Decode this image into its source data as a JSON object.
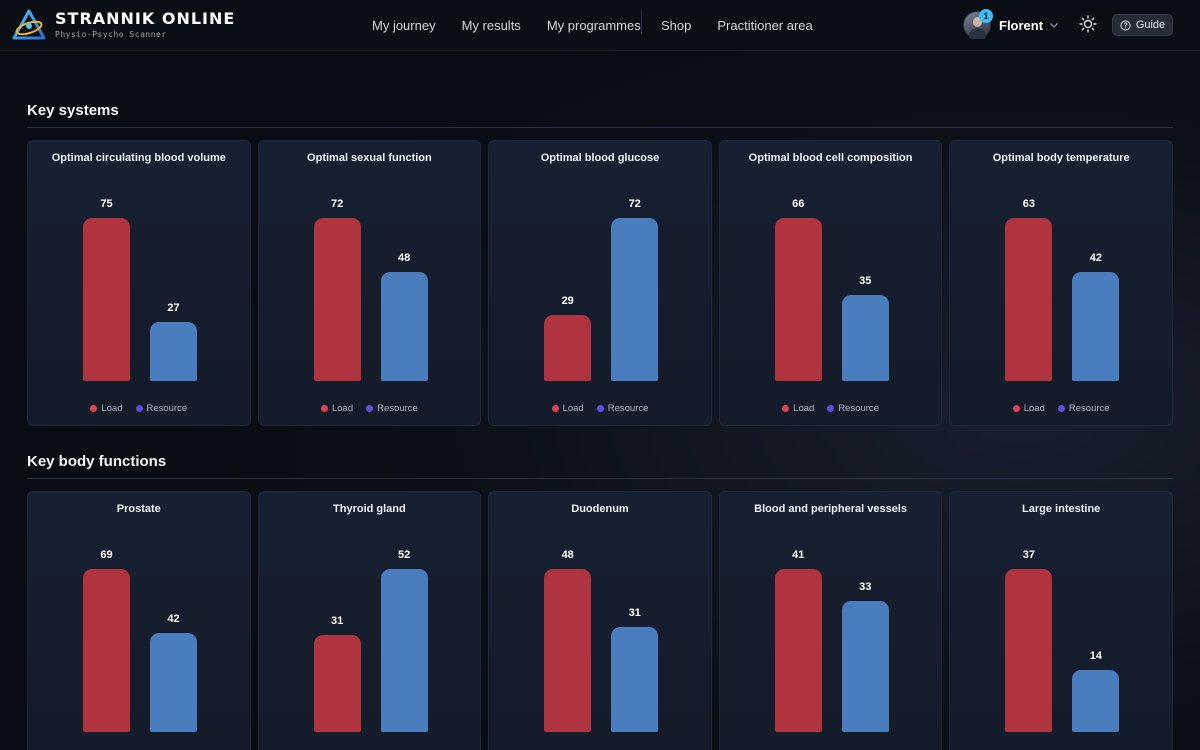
{
  "brand": {
    "name": "STRANNIK ONLINE",
    "subtitle": "Physio-Psycho Scanner"
  },
  "nav": {
    "left": [
      "My journey",
      "My results",
      "My programmes"
    ],
    "right": [
      "Shop",
      "Practitioner area"
    ]
  },
  "user": {
    "name": "Florent",
    "notifications": "1"
  },
  "guide_label": "Guide",
  "legend": {
    "load": "Load",
    "resource": "Resource"
  },
  "colors": {
    "load": "#b0343f",
    "resource": "#4a7dbe",
    "legend_load": "#e0434f",
    "legend_resource": "#5b4fe0",
    "badge": "#38bdf8"
  },
  "icons": [
    "strannik-logo-icon",
    "user-avatar",
    "chevron-down-icon",
    "sun-icon",
    "help-circle-icon"
  ],
  "sections": [
    {
      "title": "Key systems",
      "cards": [
        {
          "title": "Optimal circulating blood volume",
          "chart_data": {
            "type": "bar",
            "categories": [
              "Load",
              "Resource"
            ],
            "values": [
              75,
              27
            ],
            "ylim": [
              0,
              75
            ]
          }
        },
        {
          "title": "Optimal sexual function",
          "chart_data": {
            "type": "bar",
            "categories": [
              "Load",
              "Resource"
            ],
            "values": [
              72,
              48
            ],
            "ylim": [
              0,
              72
            ]
          }
        },
        {
          "title": "Optimal blood glucose",
          "chart_data": {
            "type": "bar",
            "categories": [
              "Load",
              "Resource"
            ],
            "values": [
              29,
              72
            ],
            "ylim": [
              0,
              72
            ]
          }
        },
        {
          "title": "Optimal blood cell composition",
          "chart_data": {
            "type": "bar",
            "categories": [
              "Load",
              "Resource"
            ],
            "values": [
              66,
              35
            ],
            "ylim": [
              0,
              66
            ]
          }
        },
        {
          "title": "Optimal body temperature",
          "chart_data": {
            "type": "bar",
            "categories": [
              "Load",
              "Resource"
            ],
            "values": [
              63,
              42
            ],
            "ylim": [
              0,
              63
            ]
          }
        }
      ]
    },
    {
      "title": "Key body functions",
      "cards": [
        {
          "title": "Prostate",
          "chart_data": {
            "type": "bar",
            "categories": [
              "Load",
              "Resource"
            ],
            "values": [
              69,
              42
            ],
            "ylim": [
              0,
              69
            ]
          }
        },
        {
          "title": "Thyroid gland",
          "chart_data": {
            "type": "bar",
            "categories": [
              "Load",
              "Resource"
            ],
            "values": [
              31,
              52
            ],
            "ylim": [
              0,
              52
            ]
          }
        },
        {
          "title": "Duodenum",
          "chart_data": {
            "type": "bar",
            "categories": [
              "Load",
              "Resource"
            ],
            "values": [
              48,
              31
            ],
            "ylim": [
              0,
              48
            ]
          }
        },
        {
          "title": "Blood and peripheral vessels",
          "chart_data": {
            "type": "bar",
            "categories": [
              "Load",
              "Resource"
            ],
            "values": [
              41,
              33
            ],
            "ylim": [
              0,
              41
            ]
          }
        },
        {
          "title": "Large intestine",
          "chart_data": {
            "type": "bar",
            "categories": [
              "Load",
              "Resource"
            ],
            "values": [
              37,
              14
            ],
            "ylim": [
              0,
              37
            ]
          }
        }
      ]
    }
  ]
}
